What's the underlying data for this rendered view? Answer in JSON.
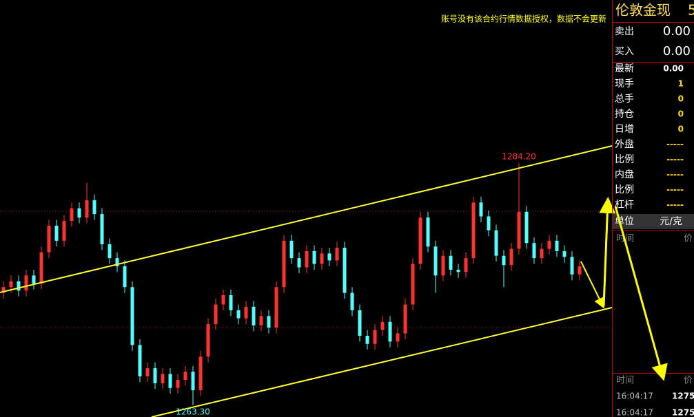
{
  "notice": "账号没有该合约行情数据授权，数据不会更新",
  "quote": {
    "title": "伦敦金现",
    "code": "5",
    "sell": {
      "label": "卖出",
      "value": "0.00"
    },
    "buy": {
      "label": "买入",
      "value": "0.00"
    },
    "stats": [
      {
        "label": "最新",
        "value": "0.00"
      },
      {
        "label": "现手",
        "value": "1"
      },
      {
        "label": "总手",
        "value": "0"
      },
      {
        "label": "持仓",
        "value": "0"
      },
      {
        "label": "日增",
        "value": "0"
      },
      {
        "label": "外盘",
        "value": "-----"
      },
      {
        "label": "比例",
        "value": "-----"
      },
      {
        "label": "内盘",
        "value": "-----"
      },
      {
        "label": "比例",
        "value": "-----"
      },
      {
        "label": "杠杆",
        "value": "-----"
      }
    ],
    "unit": {
      "label": "单位",
      "value": "元/克"
    },
    "ticks_header": {
      "time": "时间",
      "price": "价"
    },
    "trades_header": {
      "time": "时间",
      "price": "价"
    },
    "trades": [
      {
        "time": "16:04:17",
        "price": "1275."
      },
      {
        "time": "16:04:17",
        "price": "1275."
      }
    ]
  },
  "chart_data": {
    "type": "candlestick",
    "open": [
      1273.0,
      1273.5,
      1274.0,
      1273.2,
      1274.5,
      1273.8,
      1276.5,
      1278.8,
      1277.5,
      1279.2,
      1280.3,
      1279.5,
      1281.0,
      1279.8,
      1277.2,
      1276.0,
      1275.3,
      1273.5,
      1268.5,
      1265.8,
      1266.5,
      1265.2,
      1266.0,
      1264.8,
      1265.5,
      1266.2,
      1264.6,
      1267.5,
      1270.3,
      1272.0,
      1272.8,
      1271.5,
      1270.8,
      1271.8,
      1270.2,
      1271.0,
      1270.0,
      1273.5,
      1277.5,
      1276.0,
      1275.2,
      1276.6,
      1275.5,
      1276.4,
      1275.8,
      1276.9,
      1273.0,
      1271.5,
      1269.3,
      1268.6,
      1269.8,
      1270.5,
      1268.8,
      1269.5,
      1272.0,
      1275.5,
      1279.5,
      1277.0,
      1274.5,
      1276.2,
      1275.0,
      1274.8,
      1276.0,
      1280.8,
      1279.6,
      1278.4,
      1276.2,
      1275.4,
      1276.8,
      1280.0,
      1277.3,
      1276.0,
      1276.8,
      1277.5,
      1276.6,
      1276.1,
      1274.6
    ],
    "high": [
      1274.0,
      1274.5,
      1274.5,
      1275.0,
      1275.0,
      1277.0,
      1279.3,
      1279.3,
      1279.7,
      1280.8,
      1280.8,
      1282.5,
      1281.5,
      1280.3,
      1277.7,
      1276.5,
      1275.8,
      1274.0,
      1269.0,
      1267.0,
      1267.0,
      1266.5,
      1266.5,
      1266.0,
      1266.7,
      1266.7,
      1268.0,
      1270.8,
      1272.5,
      1273.3,
      1273.3,
      1272.0,
      1272.3,
      1272.3,
      1271.5,
      1271.5,
      1274.0,
      1278.0,
      1278.0,
      1276.5,
      1277.1,
      1277.1,
      1276.9,
      1276.9,
      1277.4,
      1277.4,
      1273.5,
      1272.0,
      1269.8,
      1270.3,
      1271.0,
      1271.0,
      1270.0,
      1272.5,
      1276.0,
      1280.0,
      1280.0,
      1277.5,
      1276.7,
      1276.7,
      1275.5,
      1276.5,
      1281.3,
      1281.3,
      1280.1,
      1278.9,
      1276.7,
      1277.3,
      1284.2,
      1280.5,
      1277.8,
      1277.3,
      1278.0,
      1278.0,
      1277.1,
      1276.6,
      1275.8
    ],
    "low": [
      1272.5,
      1273.0,
      1272.7,
      1272.7,
      1273.3,
      1273.3,
      1276.0,
      1277.0,
      1277.0,
      1278.7,
      1279.0,
      1279.0,
      1279.3,
      1276.7,
      1275.5,
      1274.8,
      1273.0,
      1268.0,
      1265.3,
      1265.3,
      1264.7,
      1264.7,
      1264.3,
      1264.3,
      1265.0,
      1263.3,
      1264.1,
      1267.0,
      1269.8,
      1271.5,
      1271.0,
      1270.3,
      1270.3,
      1269.7,
      1269.7,
      1269.5,
      1269.5,
      1273.0,
      1275.5,
      1274.7,
      1274.7,
      1275.0,
      1275.0,
      1275.3,
      1275.3,
      1272.5,
      1271.0,
      1268.8,
      1268.1,
      1268.1,
      1269.3,
      1268.3,
      1268.3,
      1269.0,
      1271.5,
      1275.0,
      1276.5,
      1273.0,
      1274.0,
      1274.5,
      1274.3,
      1274.3,
      1275.5,
      1279.1,
      1277.9,
      1275.7,
      1273.5,
      1274.9,
      1276.3,
      1276.8,
      1275.5,
      1275.5,
      1276.3,
      1276.1,
      1275.6,
      1274.1,
      1274.1
    ],
    "close": [
      1273.5,
      1274.0,
      1273.2,
      1274.5,
      1273.8,
      1276.5,
      1278.8,
      1277.5,
      1279.2,
      1280.3,
      1279.5,
      1281.0,
      1279.8,
      1277.2,
      1276.0,
      1275.3,
      1273.5,
      1268.5,
      1265.8,
      1266.5,
      1265.2,
      1266.0,
      1264.8,
      1265.5,
      1266.2,
      1264.6,
      1267.5,
      1270.3,
      1272.0,
      1272.8,
      1271.5,
      1270.8,
      1271.8,
      1270.2,
      1271.0,
      1270.0,
      1273.5,
      1277.5,
      1276.0,
      1275.2,
      1276.6,
      1275.5,
      1276.4,
      1275.8,
      1276.9,
      1273.0,
      1271.5,
      1269.3,
      1268.6,
      1269.8,
      1270.5,
      1268.8,
      1269.5,
      1272.0,
      1275.5,
      1279.5,
      1277.0,
      1274.5,
      1276.2,
      1275.0,
      1274.8,
      1276.0,
      1280.8,
      1279.6,
      1278.4,
      1276.2,
      1275.4,
      1276.8,
      1280.0,
      1277.3,
      1276.0,
      1276.8,
      1277.5,
      1276.6,
      1276.1,
      1274.6,
      1275.3
    ],
    "high_label": {
      "value": 1284.2,
      "label": "1284.20"
    },
    "low_label": {
      "value": 1263.3,
      "label": "1263.30"
    },
    "up_color": "#ff3232",
    "down_color": "#54ffff"
  }
}
